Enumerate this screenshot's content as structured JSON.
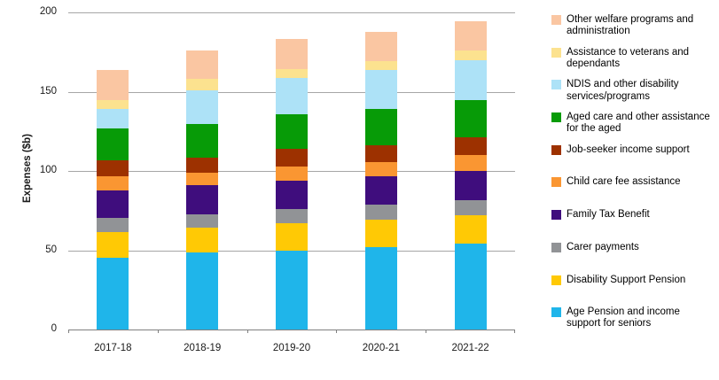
{
  "chart_data": {
    "type": "bar",
    "stacked": true,
    "title": "",
    "xlabel": "",
    "ylabel": "Expenses ($b)",
    "ylim": [
      0,
      200
    ],
    "yticks": [
      0,
      50,
      100,
      150,
      200
    ],
    "grid": true,
    "legend_position": "right",
    "categories": [
      "2017-18",
      "2018-19",
      "2019-20",
      "2020-21",
      "2021-22"
    ],
    "series": [
      {
        "name": "Age Pension and income support for seniors",
        "color": "#1FB5EA",
        "values": [
          45.5,
          48.5,
          49.5,
          52.0,
          54.0
        ]
      },
      {
        "name": "Disability Support Pension",
        "color": "#FFC905",
        "values": [
          16.0,
          15.5,
          17.5,
          17.5,
          18.0
        ]
      },
      {
        "name": "Carer payments",
        "color": "#919396",
        "values": [
          9.0,
          8.5,
          9.0,
          9.5,
          9.5
        ]
      },
      {
        "name": "Family Tax Benefit",
        "color": "#3F0D7D",
        "values": [
          17.5,
          18.5,
          18.0,
          17.5,
          18.5
        ]
      },
      {
        "name": "Child care fee assistance",
        "color": "#FA9632",
        "values": [
          8.5,
          8.0,
          9.0,
          9.0,
          10.0
        ]
      },
      {
        "name": "Job-seeker income support",
        "color": "#9D3100",
        "values": [
          10.5,
          9.5,
          11.0,
          10.5,
          11.0
        ]
      },
      {
        "name": "Aged care and other assistance for the aged",
        "color": "#079B07",
        "values": [
          20.0,
          21.0,
          21.5,
          23.0,
          23.5
        ]
      },
      {
        "name": "NDIS and other disability services/programs",
        "color": "#ADE2F7",
        "values": [
          12.0,
          21.5,
          23.0,
          24.5,
          25.5
        ]
      },
      {
        "name": "Assistance to veterans and dependants",
        "color": "#FCE28F",
        "values": [
          6.0,
          7.0,
          6.0,
          6.0,
          6.0
        ]
      },
      {
        "name": "Other welfare programs and administration",
        "color": "#FAC6A2",
        "values": [
          18.5,
          18.0,
          18.5,
          18.5,
          18.5
        ]
      }
    ],
    "totals": [
      163.5,
      176.0,
      183.0,
      188.0,
      194.5
    ],
    "legend": [
      {
        "label": "Other welfare programs and\nadministration",
        "color": "#FAC6A2"
      },
      {
        "label": "Assistance to veterans and\ndependants",
        "color": "#FCE28F"
      },
      {
        "label": "NDIS and other disability\nservices/programs",
        "color": "#ADE2F7"
      },
      {
        "label": "Aged care and other assistance\nfor the aged",
        "color": "#079B07"
      },
      {
        "label": "Job-seeker income support",
        "color": "#9D3100"
      },
      {
        "label": "Child care fee assistance",
        "color": "#FA9632"
      },
      {
        "label": "Family Tax Benefit",
        "color": "#3F0D7D"
      },
      {
        "label": "Carer payments",
        "color": "#919396"
      },
      {
        "label": "Disability Support Pension",
        "color": "#FFC905"
      },
      {
        "label": "Age Pension and income\nsupport for seniors",
        "color": "#1FB5EA"
      }
    ]
  }
}
